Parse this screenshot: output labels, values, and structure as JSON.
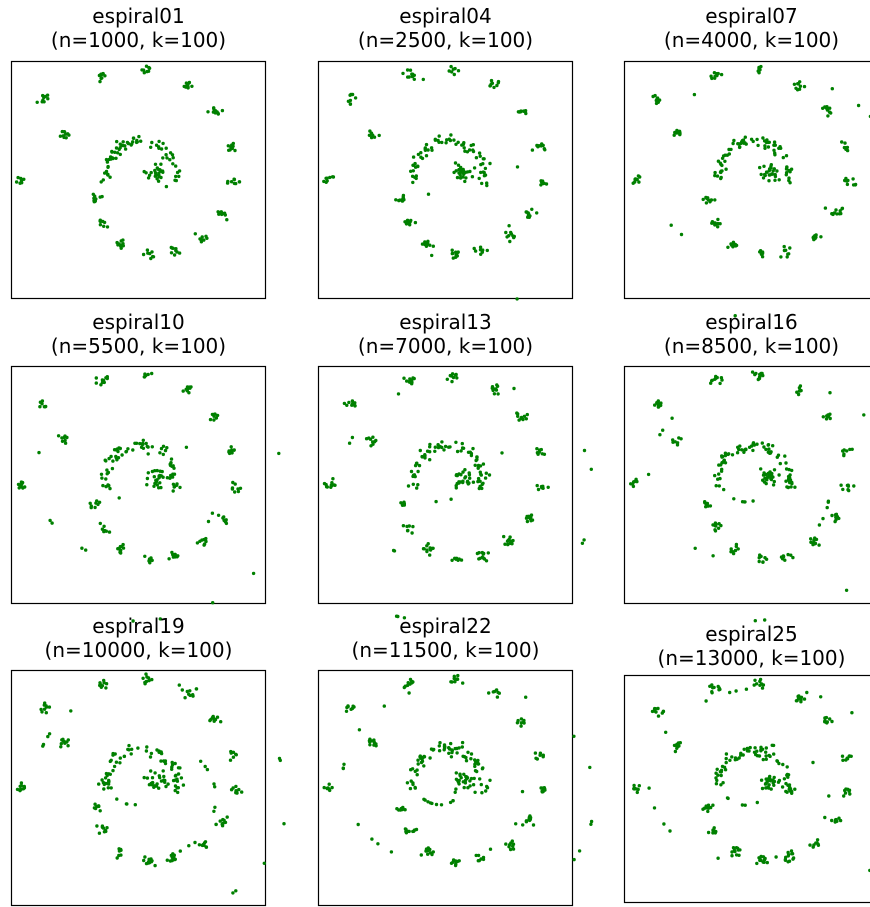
{
  "colors": {
    "points": "#008000",
    "frame": "#000000",
    "background": "#ffffff"
  },
  "panels": [
    {
      "name": "espiral01",
      "subtitle": "(n=1000, k=100)",
      "n": 1000,
      "k": 100
    },
    {
      "name": "espiral04",
      "subtitle": "(n=2500, k=100)",
      "n": 2500,
      "k": 100
    },
    {
      "name": "espiral07",
      "subtitle": "(n=4000, k=100)",
      "n": 4000,
      "k": 100
    },
    {
      "name": "espiral10",
      "subtitle": "(n=5500, k=100)",
      "n": 5500,
      "k": 100
    },
    {
      "name": "espiral13",
      "subtitle": "(n=7000, k=100)",
      "n": 7000,
      "k": 100
    },
    {
      "name": "espiral16",
      "subtitle": "(n=8500, k=100)",
      "n": 8500,
      "k": 100
    },
    {
      "name": "espiral19",
      "subtitle": "(n=10000, k=100)",
      "n": 10000,
      "k": 100
    },
    {
      "name": "espiral22",
      "subtitle": "(n=11500, k=100)",
      "n": 11500,
      "k": 100
    },
    {
      "name": "espiral25",
      "subtitle": "(n=13000, k=100)",
      "n": 13000,
      "k": 100
    }
  ],
  "chart_data": [
    {
      "type": "scatter",
      "title": "espiral01",
      "subtitle": "(n=1000, k=100)",
      "n": 1000,
      "k": 100,
      "axes_visible": false,
      "grid": false
    },
    {
      "type": "scatter",
      "title": "espiral04",
      "subtitle": "(n=2500, k=100)",
      "n": 2500,
      "k": 100,
      "axes_visible": false,
      "grid": false
    },
    {
      "type": "scatter",
      "title": "espiral07",
      "subtitle": "(n=4000, k=100)",
      "n": 4000,
      "k": 100,
      "axes_visible": false,
      "grid": false
    },
    {
      "type": "scatter",
      "title": "espiral10",
      "subtitle": "(n=5500, k=100)",
      "n": 5500,
      "k": 100,
      "axes_visible": false,
      "grid": false
    },
    {
      "type": "scatter",
      "title": "espiral13",
      "subtitle": "(n=7000, k=100)",
      "n": 7000,
      "k": 100,
      "axes_visible": false,
      "grid": false
    },
    {
      "type": "scatter",
      "title": "espiral16",
      "subtitle": "(n=8500, k=100)",
      "n": 8500,
      "k": 100,
      "axes_visible": false,
      "grid": false
    },
    {
      "type": "scatter",
      "title": "espiral19",
      "subtitle": "(n=10000, k=100)",
      "n": 10000,
      "k": 100,
      "axes_visible": false,
      "grid": false
    },
    {
      "type": "scatter",
      "title": "espiral22",
      "subtitle": "(n=11500, k=100)",
      "n": 11500,
      "k": 100,
      "axes_visible": false,
      "grid": false
    },
    {
      "type": "scatter",
      "title": "espiral25",
      "subtitle": "(n=13000, k=100)",
      "n": 13000,
      "k": 100,
      "axes_visible": false,
      "grid": false
    }
  ]
}
